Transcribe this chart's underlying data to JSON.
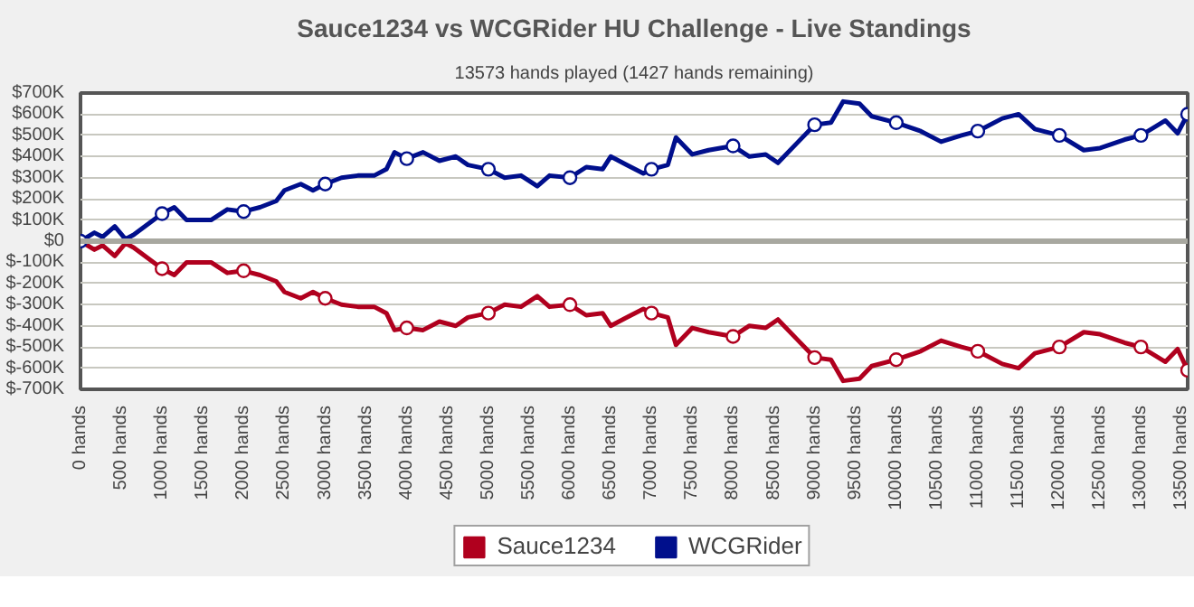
{
  "chart_data": {
    "type": "line",
    "title": "Sauce1234 vs WCGRider HU Challenge - Live Standings",
    "subtitle": "13573 hands played (1427 hands remaining)",
    "xlim": [
      0,
      13573
    ],
    "ylim": [
      -700000,
      700000
    ],
    "xticks": [
      {
        "value": 0,
        "label": "0 hands"
      },
      {
        "value": 500,
        "label": "500 hands"
      },
      {
        "value": 1000,
        "label": "1000 hands"
      },
      {
        "value": 1500,
        "label": "1500 hands"
      },
      {
        "value": 2000,
        "label": "2000 hands"
      },
      {
        "value": 2500,
        "label": "2500 hands"
      },
      {
        "value": 3000,
        "label": "3000 hands"
      },
      {
        "value": 3500,
        "label": "3500 hands"
      },
      {
        "value": 4000,
        "label": "4000 hands"
      },
      {
        "value": 4500,
        "label": "4500 hands"
      },
      {
        "value": 5000,
        "label": "5000 hands"
      },
      {
        "value": 5500,
        "label": "5500 hands"
      },
      {
        "value": 6000,
        "label": "6000 hands"
      },
      {
        "value": 6500,
        "label": "6500 hands"
      },
      {
        "value": 7000,
        "label": "7000 hands"
      },
      {
        "value": 7500,
        "label": "7500 hands"
      },
      {
        "value": 8000,
        "label": "8000 hands"
      },
      {
        "value": 8500,
        "label": "8500 hands"
      },
      {
        "value": 9000,
        "label": "9000 hands"
      },
      {
        "value": 9500,
        "label": "9500 hands"
      },
      {
        "value": 10000,
        "label": "10000 hands"
      },
      {
        "value": 10500,
        "label": "10500 hands"
      },
      {
        "value": 11000,
        "label": "11000 hands"
      },
      {
        "value": 11500,
        "label": "11500 hands"
      },
      {
        "value": 12000,
        "label": "12000 hands"
      },
      {
        "value": 12500,
        "label": "12500 hands"
      },
      {
        "value": 13000,
        "label": "13000 hands"
      },
      {
        "value": 13500,
        "label": "13500 hands"
      }
    ],
    "yticks": [
      {
        "value": 700000,
        "label": "$700K"
      },
      {
        "value": 600000,
        "label": "$600K"
      },
      {
        "value": 500000,
        "label": "$500K"
      },
      {
        "value": 400000,
        "label": "$400K"
      },
      {
        "value": 300000,
        "label": "$300K"
      },
      {
        "value": 200000,
        "label": "$200K"
      },
      {
        "value": 100000,
        "label": "$100K"
      },
      {
        "value": 0,
        "label": "$0"
      },
      {
        "value": -100000,
        "label": "$-100K"
      },
      {
        "value": -200000,
        "label": "$-200K"
      },
      {
        "value": -300000,
        "label": "$-300K"
      },
      {
        "value": -400000,
        "label": "$-400K"
      },
      {
        "value": -500000,
        "label": "$-500K"
      },
      {
        "value": -600000,
        "label": "$-600K"
      },
      {
        "value": -700000,
        "label": "$-700K"
      }
    ],
    "grid": "y",
    "legend": "bottom",
    "line_style": "solid",
    "ref_lines": [
      {
        "axis": "y",
        "value": 0,
        "label": null,
        "color": "#a8a8a0"
      }
    ],
    "series": [
      {
        "name": "Sauce1234",
        "color": "#b0001e",
        "x": [
          0,
          170,
          270,
          420,
          550,
          650,
          1000,
          1150,
          1300,
          1600,
          1800,
          2000,
          2200,
          2400,
          2500,
          2700,
          2850,
          3000,
          3200,
          3400,
          3600,
          3750,
          3850,
          4000,
          4200,
          4400,
          4600,
          4750,
          5000,
          5200,
          5400,
          5600,
          5750,
          6000,
          6200,
          6400,
          6500,
          6700,
          6900,
          7000,
          7200,
          7300,
          7500,
          7700,
          8000,
          8200,
          8400,
          8550,
          8800,
          9000,
          9200,
          9350,
          9550,
          9700,
          10000,
          10300,
          10550,
          10800,
          11000,
          11300,
          11500,
          11700,
          12000,
          12300,
          12500,
          12800,
          13000,
          13300,
          13450,
          13573
        ],
        "values": [
          0,
          -40000,
          -20000,
          -70000,
          -10000,
          -30000,
          -130000,
          -160000,
          -100000,
          -100000,
          -150000,
          -140000,
          -160000,
          -190000,
          -240000,
          -270000,
          -240000,
          -270000,
          -300000,
          -310000,
          -310000,
          -340000,
          -420000,
          -410000,
          -420000,
          -380000,
          -400000,
          -360000,
          -340000,
          -300000,
          -310000,
          -260000,
          -310000,
          -300000,
          -350000,
          -340000,
          -400000,
          -360000,
          -320000,
          -340000,
          -360000,
          -490000,
          -410000,
          -430000,
          -450000,
          -400000,
          -410000,
          -370000,
          -470000,
          -550000,
          -560000,
          -660000,
          -650000,
          -590000,
          -560000,
          -520000,
          -470000,
          -500000,
          -520000,
          -580000,
          -600000,
          -530000,
          -500000,
          -430000,
          -440000,
          -480000,
          -500000,
          -570000,
          -510000,
          -610000
        ]
      },
      {
        "name": "WCGRider",
        "color": "#000f8c",
        "x": [
          0,
          170,
          270,
          420,
          550,
          650,
          1000,
          1150,
          1300,
          1600,
          1800,
          2000,
          2200,
          2400,
          2500,
          2700,
          2850,
          3000,
          3200,
          3400,
          3600,
          3750,
          3850,
          4000,
          4200,
          4400,
          4600,
          4750,
          5000,
          5200,
          5400,
          5600,
          5750,
          6000,
          6200,
          6400,
          6500,
          6700,
          6900,
          7000,
          7200,
          7300,
          7500,
          7700,
          8000,
          8200,
          8400,
          8550,
          8800,
          9000,
          9200,
          9350,
          9550,
          9700,
          10000,
          10300,
          10550,
          10800,
          11000,
          11300,
          11500,
          11700,
          12000,
          12300,
          12500,
          12800,
          13000,
          13300,
          13450,
          13573
        ],
        "values": [
          0,
          40000,
          20000,
          70000,
          10000,
          30000,
          130000,
          160000,
          100000,
          100000,
          150000,
          140000,
          160000,
          190000,
          240000,
          270000,
          240000,
          270000,
          300000,
          310000,
          310000,
          340000,
          420000,
          390000,
          420000,
          380000,
          400000,
          360000,
          340000,
          300000,
          310000,
          260000,
          310000,
          300000,
          350000,
          340000,
          400000,
          360000,
          320000,
          340000,
          360000,
          490000,
          410000,
          430000,
          450000,
          400000,
          410000,
          370000,
          470000,
          550000,
          560000,
          660000,
          650000,
          590000,
          560000,
          520000,
          470000,
          500000,
          520000,
          580000,
          600000,
          530000,
          500000,
          430000,
          440000,
          480000,
          500000,
          570000,
          510000,
          600000
        ]
      },
      {
        "type": "scatter",
        "marker": "circle",
        "color": "#b0001e",
        "x": [
          1000,
          2000,
          3000,
          4000,
          5000,
          6000,
          7000,
          8000,
          9000,
          10000,
          11000,
          12000,
          13000,
          13573
        ],
        "values": [
          -130000,
          -140000,
          -270000,
          -410000,
          -340000,
          -300000,
          -340000,
          -450000,
          -550000,
          -560000,
          -520000,
          -500000,
          -500000,
          -610000
        ]
      },
      {
        "type": "scatter",
        "marker": "circle",
        "color": "#000f8c",
        "x": [
          0,
          1000,
          2000,
          3000,
          4000,
          5000,
          6000,
          7000,
          8000,
          9000,
          10000,
          11000,
          12000,
          13000,
          13573
        ],
        "values": [
          0,
          130000,
          140000,
          270000,
          390000,
          340000,
          300000,
          340000,
          450000,
          550000,
          560000,
          520000,
          500000,
          500000,
          600000
        ]
      }
    ]
  }
}
